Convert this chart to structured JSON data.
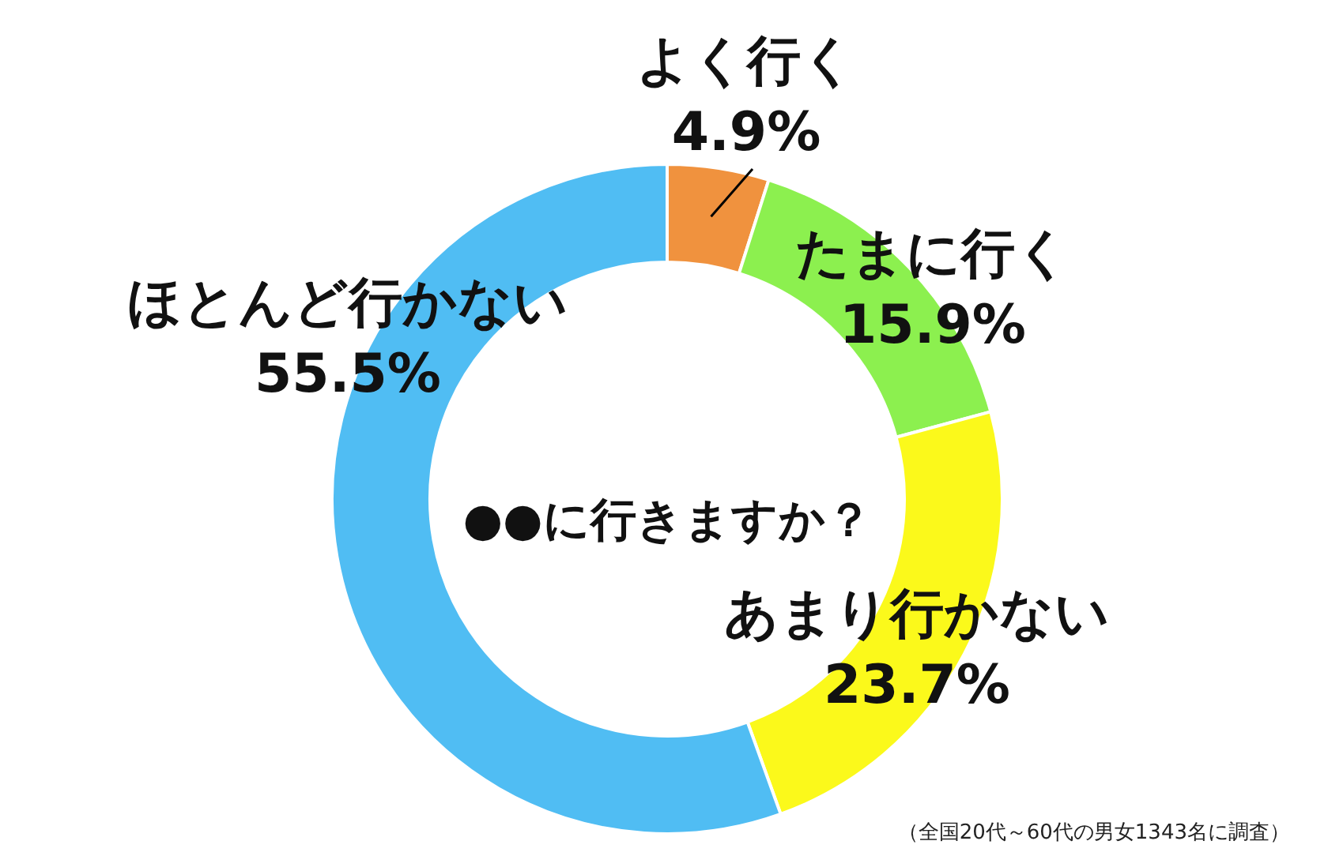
{
  "chart_data": {
    "type": "donut",
    "title": "●●に行きますか？",
    "categories": [
      "よく行く",
      "たまに行く",
      "あまり行かない",
      "ほとんど行かない"
    ],
    "values": [
      4.9,
      15.9,
      23.7,
      55.5
    ],
    "value_labels": [
      "4.9%",
      "15.9%",
      "23.7%",
      "55.5%"
    ],
    "colors": [
      "#f0923e",
      "#8cf04f",
      "#fbf91b",
      "#50bdf3"
    ],
    "annotations": [
      "（全国20代～60代の男女1343名に調査）"
    ]
  }
}
